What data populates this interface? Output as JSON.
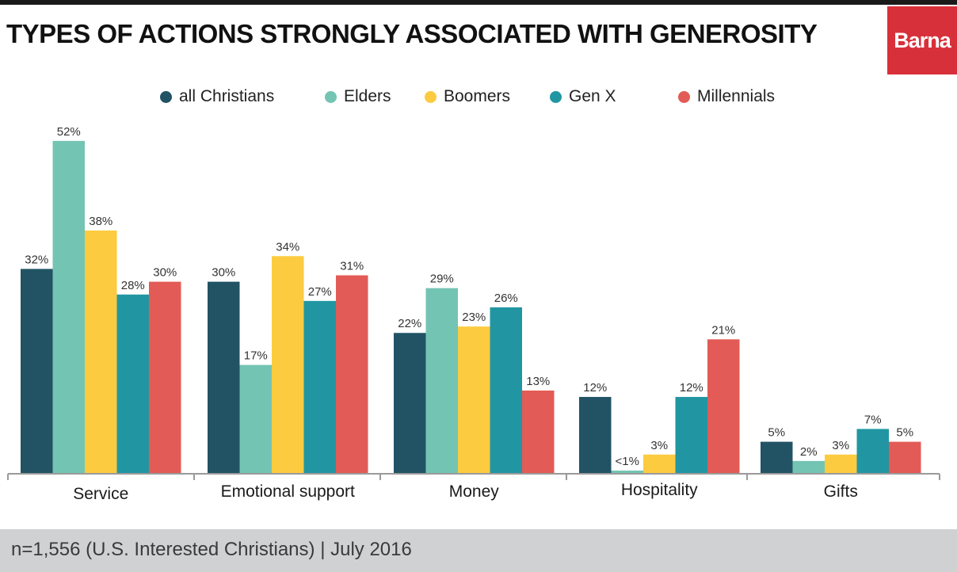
{
  "header": {
    "title": "TYPES OF ACTIONS STRONGLY ASSOCIATED WITH GENEROSITY",
    "logo_text": "Barna"
  },
  "colors": {
    "all_christians": "#215364",
    "elders": "#74c4b3",
    "boomers": "#fccb40",
    "gen_x": "#2196a2",
    "millennials": "#e35b56",
    "logo_bg": "#d8303a",
    "axis": "#9a9a9a",
    "footer_bg": "#d0d1d3"
  },
  "legend": [
    {
      "label": "all Christians"
    },
    {
      "label": "Elders"
    },
    {
      "label": "Boomers"
    },
    {
      "label": "Gen X"
    },
    {
      "label": "Millennials"
    }
  ],
  "chart_data": {
    "type": "bar",
    "title": "TYPES OF ACTIONS STRONGLY ASSOCIATED WITH GENEROSITY",
    "xlabel": "",
    "ylabel": "",
    "ylim": [
      0,
      52
    ],
    "grid": false,
    "legend_position": "top",
    "categories": [
      "Service",
      "Emotional support",
      "Money",
      "Hospitality",
      "Gifts"
    ],
    "series": [
      {
        "name": "all Christians",
        "values": [
          32,
          30,
          22,
          12,
          5
        ],
        "labels": [
          "32%",
          "30%",
          "22%",
          "12%",
          "5%"
        ]
      },
      {
        "name": "Elders",
        "values": [
          52,
          17,
          29,
          0.5,
          2
        ],
        "labels": [
          "52%",
          "17%",
          "29%",
          "<1%",
          "2%"
        ]
      },
      {
        "name": "Boomers",
        "values": [
          38,
          34,
          23,
          3,
          3
        ],
        "labels": [
          "38%",
          "34%",
          "23%",
          "3%",
          "3%"
        ]
      },
      {
        "name": "Gen X",
        "values": [
          28,
          27,
          26,
          12,
          7
        ],
        "labels": [
          "28%",
          "27%",
          "26%",
          "12%",
          "7%"
        ]
      },
      {
        "name": "Millennials",
        "values": [
          30,
          31,
          13,
          21,
          5
        ],
        "labels": [
          "30%",
          "31%",
          "13%",
          "21%",
          "5%"
        ]
      }
    ]
  },
  "footer": {
    "note": "n=1,556 (U.S. Interested Christians) | July 2016"
  }
}
